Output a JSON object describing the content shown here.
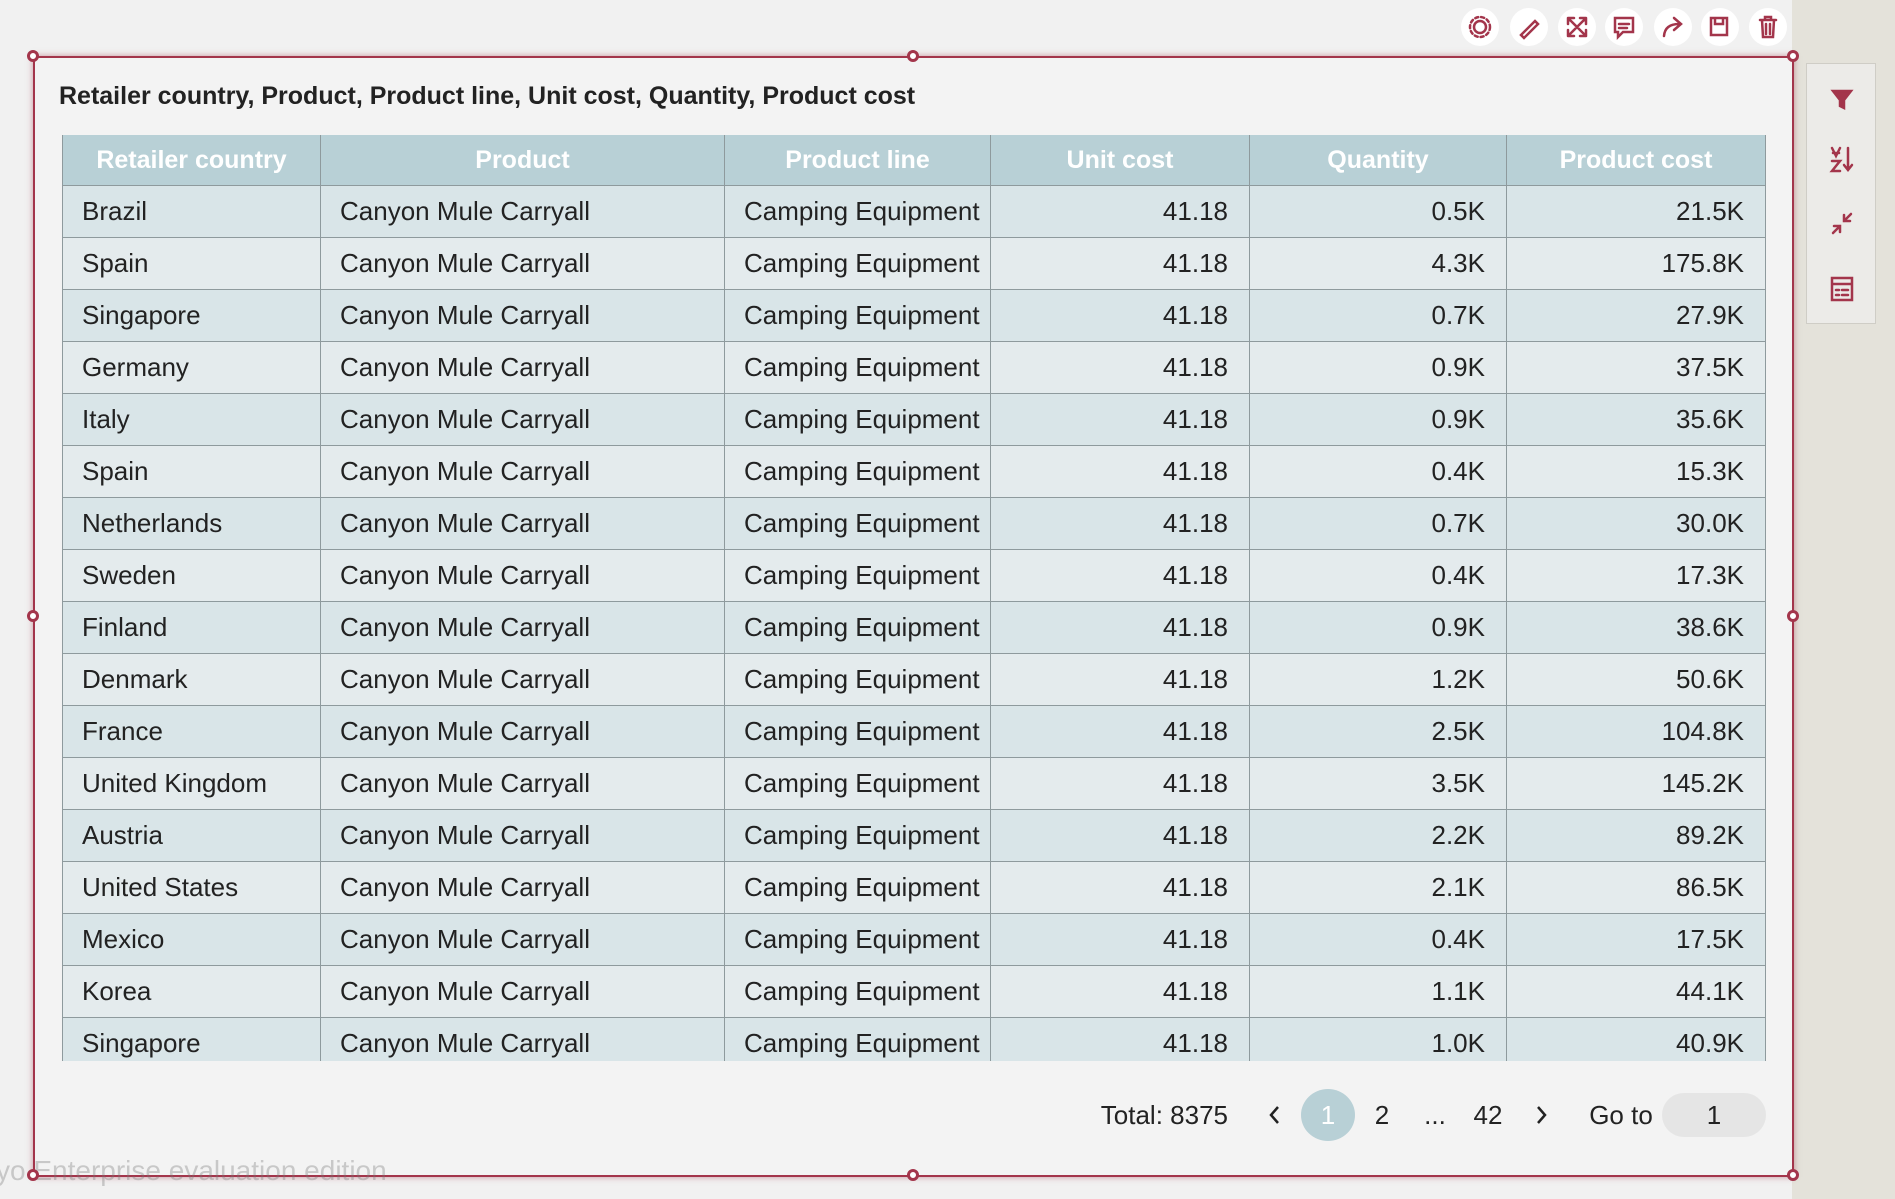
{
  "title": "Retailer country, Product, Product line, Unit cost, Quantity, Product cost",
  "table": {
    "columns": [
      "Retailer country",
      "Product",
      "Product line",
      "Unit cost",
      "Quantity",
      "Product cost"
    ],
    "rows": [
      [
        "Brazil",
        "Canyon Mule Carryall",
        "Camping Equipment",
        "41.18",
        "0.5K",
        "21.5K"
      ],
      [
        "Spain",
        "Canyon Mule Carryall",
        "Camping Equipment",
        "41.18",
        "4.3K",
        "175.8K"
      ],
      [
        "Singapore",
        "Canyon Mule Carryall",
        "Camping Equipment",
        "41.18",
        "0.7K",
        "27.9K"
      ],
      [
        "Germany",
        "Canyon Mule Carryall",
        "Camping Equipment",
        "41.18",
        "0.9K",
        "37.5K"
      ],
      [
        "Italy",
        "Canyon Mule Carryall",
        "Camping Equipment",
        "41.18",
        "0.9K",
        "35.6K"
      ],
      [
        "Spain",
        "Canyon Mule Carryall",
        "Camping Equipment",
        "41.18",
        "0.4K",
        "15.3K"
      ],
      [
        "Netherlands",
        "Canyon Mule Carryall",
        "Camping Equipment",
        "41.18",
        "0.7K",
        "30.0K"
      ],
      [
        "Sweden",
        "Canyon Mule Carryall",
        "Camping Equipment",
        "41.18",
        "0.4K",
        "17.3K"
      ],
      [
        "Finland",
        "Canyon Mule Carryall",
        "Camping Equipment",
        "41.18",
        "0.9K",
        "38.6K"
      ],
      [
        "Denmark",
        "Canyon Mule Carryall",
        "Camping Equipment",
        "41.18",
        "1.2K",
        "50.6K"
      ],
      [
        "France",
        "Canyon Mule Carryall",
        "Camping Equipment",
        "41.18",
        "2.5K",
        "104.8K"
      ],
      [
        "United Kingdom",
        "Canyon Mule Carryall",
        "Camping Equipment",
        "41.18",
        "3.5K",
        "145.2K"
      ],
      [
        "Austria",
        "Canyon Mule Carryall",
        "Camping Equipment",
        "41.18",
        "2.2K",
        "89.2K"
      ],
      [
        "United States",
        "Canyon Mule Carryall",
        "Camping Equipment",
        "41.18",
        "2.1K",
        "86.5K"
      ],
      [
        "Mexico",
        "Canyon Mule Carryall",
        "Camping Equipment",
        "41.18",
        "0.4K",
        "17.5K"
      ],
      [
        "Korea",
        "Canyon Mule Carryall",
        "Camping Equipment",
        "41.18",
        "1.1K",
        "44.1K"
      ],
      [
        "Singapore",
        "Canyon Mule Carryall",
        "Camping Equipment",
        "41.18",
        "1.0K",
        "40.9K"
      ]
    ]
  },
  "pagination": {
    "total": "Total: 8375",
    "pages": [
      "1",
      "2",
      "...",
      "42"
    ],
    "goto_label": "Go to",
    "goto_value": "1"
  },
  "watermark": "yo Enterprise evaluation edition"
}
